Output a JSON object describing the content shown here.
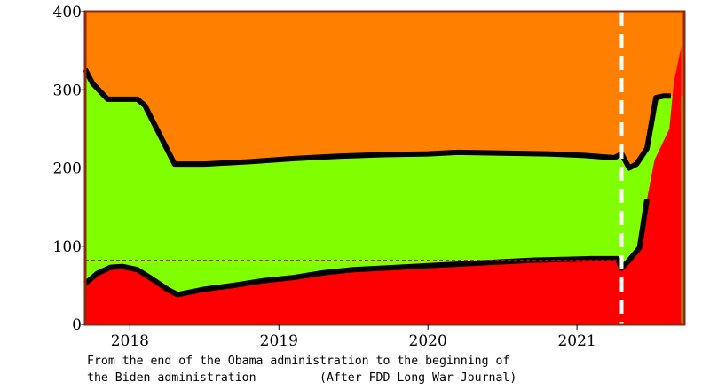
{
  "chart_data": {
    "type": "area",
    "title": "",
    "xlabel": "",
    "ylabel": "",
    "xlim": [
      2017.7,
      2021.72
    ],
    "ylim": [
      0,
      400
    ],
    "x_ticks": [
      2018,
      2019,
      2020,
      2021
    ],
    "y_ticks": [
      0,
      100,
      200,
      300,
      400
    ],
    "grid": false,
    "legend": "none",
    "reference_line_y": 82,
    "vertical_marker_x": 2021.3,
    "colors": {
      "top_band": "#ff8000",
      "middle_band": "#80ff00",
      "bottom_band": "#ff0000",
      "boundary": "#000000",
      "frame": "#8b2a10",
      "reference_line": "#e60000",
      "vertical_marker": "#ffffff"
    },
    "bands": [
      {
        "color_key": "bottom_band",
        "x": [
          2017.7,
          2017.78,
          2017.87,
          2017.95,
          2018.05,
          2018.15,
          2018.25,
          2018.32,
          2018.5,
          2018.7,
          2018.9,
          2019.1,
          2019.3,
          2019.5,
          2019.7,
          2019.9,
          2020.1,
          2020.3,
          2020.5,
          2020.7,
          2020.9,
          2021.1,
          2021.27,
          2021.3,
          2021.35,
          2021.42,
          2021.47,
          2021.52,
          2021.57,
          2021.62,
          2021.65,
          2021.7
        ],
        "y": [
          52,
          65,
          73,
          74,
          70,
          58,
          45,
          38,
          45,
          50,
          56,
          60,
          66,
          70,
          72,
          74,
          76,
          78,
          80,
          82,
          83,
          84,
          84,
          72,
          82,
          98,
          160,
          210,
          230,
          250,
          310,
          355
        ]
      },
      {
        "color_key": "middle_band",
        "x": [
          2017.7,
          2017.75,
          2017.85,
          2018.05,
          2018.1,
          2018.3,
          2018.5,
          2018.8,
          2019.1,
          2019.4,
          2019.7,
          2020.0,
          2020.2,
          2020.5,
          2020.8,
          2021.05,
          2021.25,
          2021.3,
          2021.35,
          2021.4,
          2021.47,
          2021.53,
          2021.58,
          2021.63
        ],
        "y": [
          326,
          308,
          288,
          288,
          280,
          205,
          205,
          208,
          212,
          215,
          217,
          218,
          220,
          219,
          218,
          216,
          213,
          218,
          200,
          205,
          225,
          290,
          292,
          292
        ]
      }
    ]
  },
  "caption": {
    "line1": "From the end of the Obama administration to the beginning of",
    "line2": "the Biden administration         (After FDD Long War Journal)"
  }
}
